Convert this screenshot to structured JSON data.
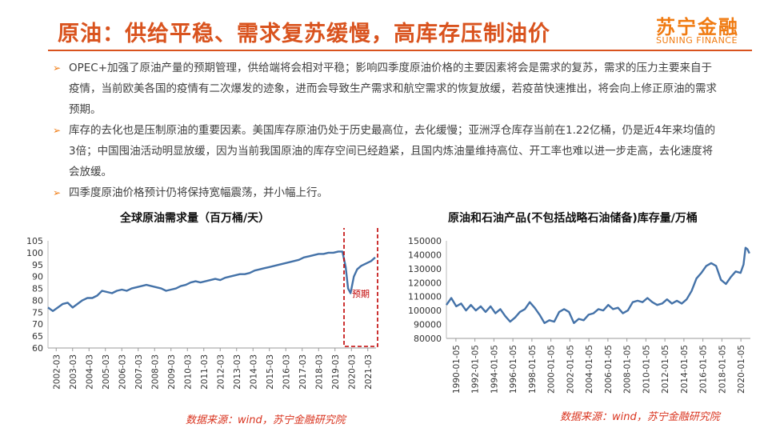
{
  "header": {
    "title": "原油：供给平稳、需求复苏缓慢，高库存压制油价",
    "logo_cn": "苏宁金融",
    "logo_en": "SUNING FINANCE"
  },
  "bullets": [
    "OPEC+加强了原油产量的预期管理，供给端将会相对平稳；影响四季度原油价格的主要因素将会是需求的复苏，需求的压力主要来自于疫情，当前欧美各国的疫情有二次爆发的迹象，进而会导致生产需求和航空需求的恢复放缓，若疫苗快速推出，将会向上修正原油的需求预期。",
    "库存的去化也是压制原油的重要因素。美国库存原油仍处于历史最高位，去化缓慢；亚洲浮仓库存当前在1.22亿桶，仍是近4年来均值的3倍；中国囤油活动明显放缓，因为当前我国原油的库存空间已经趋紧，且国内炼油量维持高位、开工率也难以进一步走高，去化速度将会放缓。",
    "四季度原油价格预计仍将保持宽幅震荡，并小幅上行。"
  ],
  "colors": {
    "accent": "#d9531e",
    "logo": "#f07b12",
    "line": "#4472a8",
    "forecast_box": "#c00000"
  },
  "chart_data": [
    {
      "type": "line",
      "title": "全球原油需求量（百万桶/天）",
      "ylim": [
        60,
        105
      ],
      "yticks": [
        60,
        65,
        70,
        75,
        80,
        85,
        90,
        95,
        100,
        105
      ],
      "xticks": [
        "2002-03",
        "2003-03",
        "2004-03",
        "2005-03",
        "2006-03",
        "2007-03",
        "2008-03",
        "2009-03",
        "2010-03",
        "2011-03",
        "2012-03",
        "2013-03",
        "2014-03",
        "2015-03",
        "2016-03",
        "2017-03",
        "2018-03",
        "2019-03",
        "2020-03",
        "2021-03"
      ],
      "x_range": [
        2002.0,
        2022.0
      ],
      "annotation": "预期",
      "series": [
        {
          "points": [
            [
              2002.0,
              77
            ],
            [
              2002.3,
              75.5
            ],
            [
              2002.6,
              77
            ],
            [
              2002.9,
              78.5
            ],
            [
              2003.2,
              79
            ],
            [
              2003.5,
              77
            ],
            [
              2003.8,
              78.5
            ],
            [
              2004.1,
              80
            ],
            [
              2004.4,
              81
            ],
            [
              2004.7,
              81
            ],
            [
              2005.0,
              82
            ],
            [
              2005.3,
              84
            ],
            [
              2005.6,
              83.5
            ],
            [
              2005.9,
              83
            ],
            [
              2006.2,
              84
            ],
            [
              2006.5,
              84.5
            ],
            [
              2006.8,
              84
            ],
            [
              2007.1,
              85
            ],
            [
              2007.4,
              85.5
            ],
            [
              2007.7,
              86
            ],
            [
              2008.0,
              86.5
            ],
            [
              2008.3,
              86
            ],
            [
              2008.6,
              85.5
            ],
            [
              2008.9,
              85
            ],
            [
              2009.2,
              84
            ],
            [
              2009.5,
              84.5
            ],
            [
              2009.8,
              85
            ],
            [
              2010.1,
              86
            ],
            [
              2010.4,
              86.5
            ],
            [
              2010.7,
              87.5
            ],
            [
              2011.0,
              88
            ],
            [
              2011.3,
              87.5
            ],
            [
              2011.6,
              88
            ],
            [
              2011.9,
              88.5
            ],
            [
              2012.2,
              89
            ],
            [
              2012.5,
              88.5
            ],
            [
              2012.8,
              89.5
            ],
            [
              2013.1,
              90
            ],
            [
              2013.4,
              90.5
            ],
            [
              2013.7,
              91
            ],
            [
              2014.0,
              91
            ],
            [
              2014.3,
              91.5
            ],
            [
              2014.6,
              92.5
            ],
            [
              2014.9,
              93
            ],
            [
              2015.2,
              93.5
            ],
            [
              2015.5,
              94
            ],
            [
              2015.8,
              94.5
            ],
            [
              2016.1,
              95
            ],
            [
              2016.4,
              95.5
            ],
            [
              2016.7,
              96
            ],
            [
              2017.0,
              96.5
            ],
            [
              2017.3,
              97
            ],
            [
              2017.6,
              98
            ],
            [
              2017.9,
              98.5
            ],
            [
              2018.2,
              99
            ],
            [
              2018.5,
              99.5
            ],
            [
              2018.8,
              99.5
            ],
            [
              2019.1,
              100
            ],
            [
              2019.4,
              100
            ],
            [
              2019.7,
              100.5
            ],
            [
              2019.95,
              100.5
            ],
            [
              2020.15,
              94
            ],
            [
              2020.3,
              85
            ],
            [
              2020.45,
              83
            ],
            [
              2020.65,
              90
            ],
            [
              2020.85,
              93
            ],
            [
              2021.1,
              94.5
            ],
            [
              2021.4,
              95.5
            ],
            [
              2021.7,
              96.5
            ],
            [
              2021.95,
              98
            ]
          ]
        }
      ]
    },
    {
      "type": "line",
      "title": "原油和石油产品(不包括战略石油储备)库存量/万桶",
      "ylim": [
        80000,
        150000
      ],
      "yticks": [
        80000,
        90000,
        100000,
        110000,
        120000,
        130000,
        140000,
        150000
      ],
      "xticks": [
        "1990-01-05",
        "1992-01-05",
        "1994-01-05",
        "1996-01-05",
        "1998-01-05",
        "2000-01-05",
        "2002-01-05",
        "2004-01-05",
        "2006-01-05",
        "2008-01-05",
        "2010-01-05",
        "2012-01-05",
        "2014-01-05",
        "2016-01-05",
        "2018-01-05",
        "2020-01-05"
      ],
      "x_range": [
        1990.0,
        2021.0
      ],
      "series": [
        {
          "points": [
            [
              1990.0,
              104000
            ],
            [
              1990.5,
              109000
            ],
            [
              1991.0,
              103000
            ],
            [
              1991.5,
              105000
            ],
            [
              1992.0,
              100000
            ],
            [
              1992.5,
              104000
            ],
            [
              1993.0,
              100000
            ],
            [
              1993.5,
              103000
            ],
            [
              1994.0,
              99000
            ],
            [
              1994.5,
              103000
            ],
            [
              1995.0,
              98000
            ],
            [
              1995.5,
              101000
            ],
            [
              1996.0,
              96000
            ],
            [
              1996.5,
              92000
            ],
            [
              1997.0,
              95000
            ],
            [
              1997.5,
              99000
            ],
            [
              1998.0,
              101000
            ],
            [
              1998.5,
              106000
            ],
            [
              1999.0,
              102000
            ],
            [
              1999.5,
              97000
            ],
            [
              2000.0,
              91000
            ],
            [
              2000.5,
              93000
            ],
            [
              2001.0,
              92000
            ],
            [
              2001.5,
              99000
            ],
            [
              2002.0,
              101000
            ],
            [
              2002.5,
              99000
            ],
            [
              2003.0,
              91000
            ],
            [
              2003.5,
              94000
            ],
            [
              2004.0,
              93000
            ],
            [
              2004.5,
              97000
            ],
            [
              2005.0,
              98000
            ],
            [
              2005.5,
              101000
            ],
            [
              2006.0,
              100000
            ],
            [
              2006.5,
              104000
            ],
            [
              2007.0,
              101000
            ],
            [
              2007.5,
              102000
            ],
            [
              2008.0,
              98000
            ],
            [
              2008.5,
              100000
            ],
            [
              2009.0,
              106000
            ],
            [
              2009.5,
              107000
            ],
            [
              2010.0,
              106000
            ],
            [
              2010.5,
              109000
            ],
            [
              2011.0,
              106000
            ],
            [
              2011.5,
              104000
            ],
            [
              2012.0,
              105000
            ],
            [
              2012.5,
              108000
            ],
            [
              2013.0,
              105000
            ],
            [
              2013.5,
              107000
            ],
            [
              2014.0,
              105000
            ],
            [
              2014.5,
              108000
            ],
            [
              2015.0,
              114000
            ],
            [
              2015.5,
              123000
            ],
            [
              2016.0,
              127000
            ],
            [
              2016.5,
              132000
            ],
            [
              2017.0,
              134000
            ],
            [
              2017.5,
              132000
            ],
            [
              2018.0,
              122000
            ],
            [
              2018.5,
              119000
            ],
            [
              2019.0,
              124000
            ],
            [
              2019.5,
              128000
            ],
            [
              2020.0,
              127000
            ],
            [
              2020.3,
              133000
            ],
            [
              2020.5,
              145000
            ],
            [
              2020.7,
              144000
            ],
            [
              2020.9,
              141000
            ]
          ]
        }
      ]
    }
  ],
  "sources": [
    "数据来源：wind，苏宁金融研究院",
    "数据来源：wind，苏宁金融研究院"
  ]
}
